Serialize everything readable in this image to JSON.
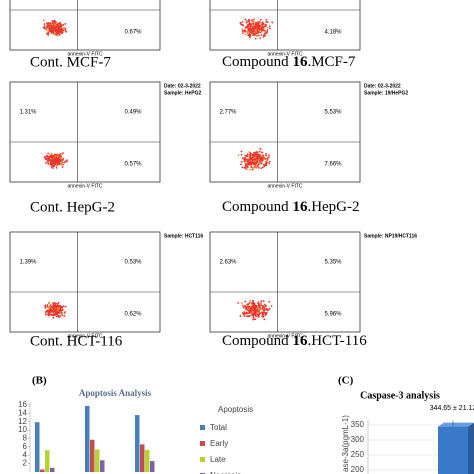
{
  "flow_axis_label": "annexin-V FITC",
  "flow_panels": [
    {
      "caption": "Cont. MCF-7",
      "quadrants": {
        "lr": "0.67%"
      }
    },
    {
      "caption": {
        "prefix": "Compound ",
        "bold": "16",
        "suffix": ".MCF-7"
      },
      "quadrants": {
        "lr": "4.18%"
      }
    },
    {
      "caption": "Cont. HepG-2",
      "header": [
        "Date: 02-3-2022",
        "Sample: HePG2"
      ],
      "quadrants": {
        "ul": "1.31%",
        "ur": "0.49%",
        "lr": "0.57%"
      }
    },
    {
      "caption": {
        "prefix": "Compound ",
        "bold": "16",
        "suffix": ".HepG-2"
      },
      "header": [
        "Date: 02-3-2022",
        "Sample: 19/HePG2"
      ],
      "quadrants": {
        "ul": "2.77%",
        "ur": "5.53%",
        "lr": "7.66%"
      }
    },
    {
      "caption": "Cont. HCT-116",
      "header": [
        "Sample: HCT116"
      ],
      "quadrants": {
        "ul": "1.39%",
        "ur": "0.53%",
        "lr": "0.62%"
      }
    },
    {
      "caption": {
        "prefix": "Compound ",
        "bold": "16",
        "suffix": ".HCT-116"
      },
      "header": [
        "Sample: NP19/HCT116"
      ],
      "quadrants": {
        "ul": "2.63%",
        "ur": "5.35%",
        "lr": "5.96%"
      }
    }
  ],
  "chart_data": [
    {
      "type": "bar",
      "panel_label": "(B)",
      "title": "Apoptosis Analysis",
      "legend_title": "Apoptosis",
      "categories": [
        null,
        null,
        null
      ],
      "series": [
        {
          "name": "Total",
          "color": "#4a7ebb",
          "values": [
            11.9,
            15.8,
            13.6
          ]
        },
        {
          "name": "Early",
          "color": "#c0504d",
          "values": [
            0.6,
            7.7,
            6.6
          ]
        },
        {
          "name": "Late",
          "color": "#b5d334",
          "values": [
            5.2,
            5.4,
            5.3
          ]
        },
        {
          "name": "Necrosis",
          "color": "#7f5fa8",
          "values": [
            1.0,
            2.8,
            2.6
          ]
        }
      ],
      "ylim": [
        0,
        16
      ],
      "yticks": [
        2,
        4,
        6,
        8,
        10,
        12,
        14,
        16
      ]
    },
    {
      "type": "bar3d",
      "panel_label": "(C)",
      "title": "Caspase-3 analysis",
      "ylabel": "ase-3a(pgmL-1)",
      "categories": [
        null
      ],
      "values": [
        344.65
      ],
      "errors": [
        21.12
      ],
      "value_labels": [
        "344.65 ± 21.12"
      ],
      "color": "#3a78c9",
      "ylim": [
        200,
        350
      ],
      "yticks": [
        200,
        250,
        300,
        350
      ]
    }
  ]
}
